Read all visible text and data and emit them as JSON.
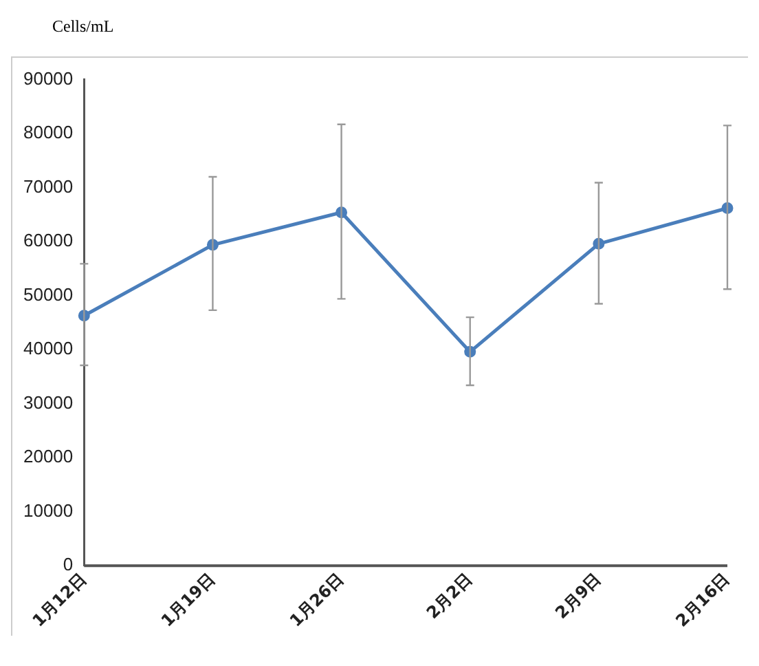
{
  "chart_data": {
    "type": "line",
    "title": "Cells/mL",
    "categories": [
      "1月12日",
      "1月19日",
      "1月26日",
      "2月2日",
      "2月9日",
      "2月16日"
    ],
    "series": [
      {
        "color": "#4a7ebb",
        "values": [
          46300,
          59400,
          65400,
          39600,
          59600,
          66200
        ],
        "errors": [
          [
            37100,
            55900
          ],
          [
            47300,
            72000
          ],
          [
            49400,
            81700
          ],
          [
            33400,
            46000
          ],
          [
            48500,
            70900
          ],
          [
            51200,
            81500
          ]
        ]
      }
    ],
    "ylim": [
      0,
      90000
    ],
    "yticks": [
      0,
      10000,
      20000,
      30000,
      40000,
      50000,
      60000,
      70000,
      80000,
      90000
    ],
    "grid": false,
    "legend": false,
    "marker": "circle",
    "line_style": "solid"
  }
}
